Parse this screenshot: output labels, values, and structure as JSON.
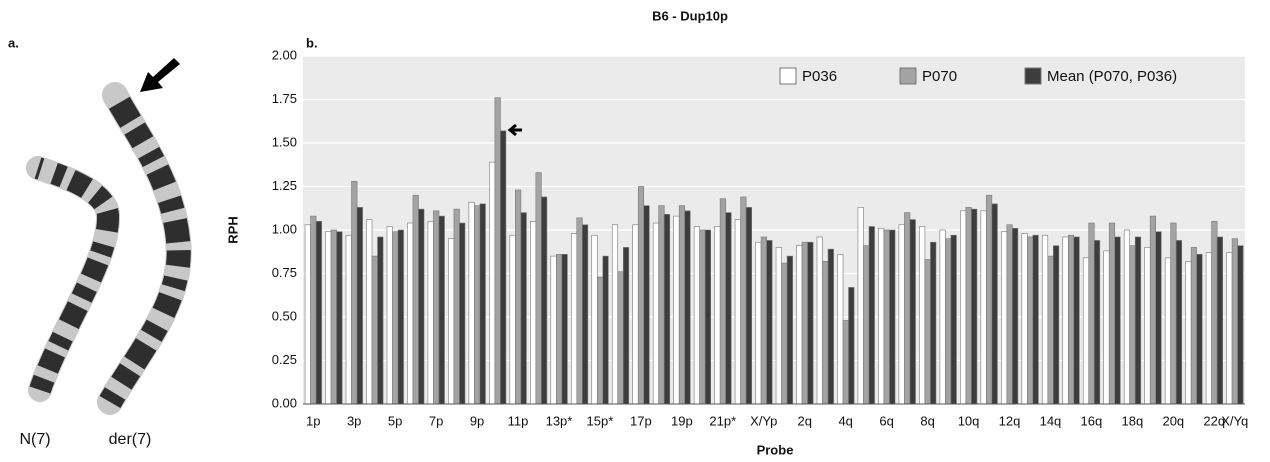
{
  "panel_a": {
    "label": "a.",
    "chromosomes": [
      "N(7)",
      "der(7)"
    ]
  },
  "chart_data": {
    "type": "bar",
    "panel_label": "b.",
    "title": "B6 - Dup10p",
    "x_label": "Probe",
    "y_label": "RPH",
    "categories": [
      "1p",
      null,
      "3p",
      null,
      "5p",
      null,
      "7p",
      null,
      "9p",
      null,
      "11p",
      null,
      "13p*",
      null,
      "15p*",
      null,
      "17p",
      null,
      "19p",
      null,
      "21p*",
      null,
      "X/Yp",
      null,
      "2q",
      null,
      "4q",
      null,
      "6q",
      null,
      "8q",
      null,
      "10q",
      null,
      "12q",
      null,
      "14q",
      null,
      "16q",
      null,
      "18q",
      null,
      "20q",
      null,
      "22q",
      "X/Yq"
    ],
    "series": [
      {
        "name": "P036",
        "color": "#ffffff",
        "values": [
          1.03,
          0.99,
          0.97,
          1.06,
          1.02,
          1.04,
          1.05,
          0.95,
          1.16,
          1.39,
          0.97,
          1.05,
          0.85,
          0.98,
          0.97,
          1.03,
          1.03,
          1.04,
          1.08,
          1.02,
          1.02,
          1.06,
          0.93,
          0.9,
          0.91,
          0.96,
          0.86,
          1.13,
          1.01,
          1.03,
          1.02,
          1.0,
          1.11,
          1.11,
          0.99,
          0.98,
          0.97,
          0.96,
          0.84,
          0.88,
          1.0,
          0.9,
          0.84,
          0.82,
          0.87,
          0.87
        ]
      },
      {
        "name": "P070",
        "color": "#a3a3a3",
        "values": [
          1.08,
          1.0,
          1.28,
          0.85,
          0.99,
          1.2,
          1.11,
          1.12,
          1.14,
          1.76,
          1.23,
          1.33,
          0.86,
          1.07,
          0.73,
          0.76,
          1.25,
          1.14,
          1.14,
          1.0,
          1.18,
          1.19,
          0.96,
          0.81,
          0.93,
          0.82,
          0.48,
          0.91,
          1.0,
          1.1,
          0.83,
          0.95,
          1.13,
          1.2,
          1.03,
          0.96,
          0.85,
          0.97,
          1.04,
          1.04,
          0.91,
          1.08,
          1.04,
          0.9,
          1.05,
          0.95
        ]
      },
      {
        "name": "Mean (P070, P036)",
        "color": "#3d3d3d",
        "values": [
          1.05,
          0.99,
          1.13,
          0.96,
          1.0,
          1.12,
          1.08,
          1.04,
          1.15,
          1.57,
          1.1,
          1.19,
          0.86,
          1.03,
          0.85,
          0.9,
          1.14,
          1.09,
          1.11,
          1.0,
          1.1,
          1.13,
          0.94,
          0.85,
          0.93,
          0.89,
          0.67,
          1.02,
          1.0,
          1.06,
          0.93,
          0.97,
          1.12,
          1.15,
          1.01,
          0.97,
          0.91,
          0.96,
          0.94,
          0.96,
          0.96,
          0.99,
          0.94,
          0.86,
          0.96,
          0.91
        ]
      }
    ],
    "ylim": [
      0,
      2
    ],
    "yticks": [
      {
        "value": 0,
        "label": "0.00"
      },
      0.25,
      {
        "value": 0.5,
        "label": "0.50"
      },
      0.75,
      {
        "value": 1,
        "label": "1.00"
      },
      1.25,
      {
        "value": 1.5,
        "label": "1.50"
      },
      1.75,
      {
        "value": 2,
        "label": "2.00"
      }
    ],
    "grid": true,
    "legend": "top-right"
  }
}
